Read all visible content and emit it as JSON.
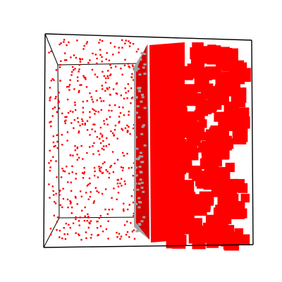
{
  "scene": {
    "background": "#ffffff",
    "edge_color": "#000000",
    "particle_color": "#ff0000",
    "slab_color": "#d80000",
    "shadow_color": "#a3a3a3"
  }
}
